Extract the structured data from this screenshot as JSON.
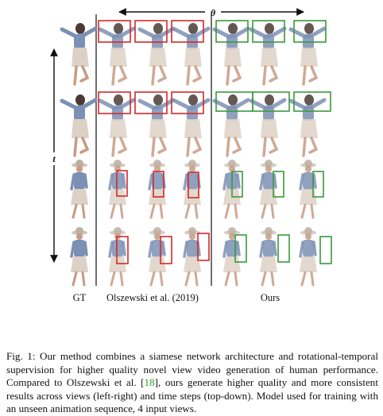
{
  "figure": {
    "axis_theta": "θ",
    "axis_t": "t",
    "columns": [
      "GT",
      "Olszewski et al. (2019)",
      "Ours"
    ],
    "colors": {
      "baseline_box": "#d42a2a",
      "ours_box": "#3a9a3a"
    }
  },
  "caption": {
    "prefix": "Fig. 1: Our method combines a siamese network architecture and rotational-temporal supervision for higher quality novel view video generation of human performance. Compared to Olszewski et al. [",
    "ref": "18",
    "suffix": "], ours generate higher quality and more consistent results across views (left-right) and time steps (top-down). Model used for training with an unseen animation sequence, 4 input views."
  }
}
